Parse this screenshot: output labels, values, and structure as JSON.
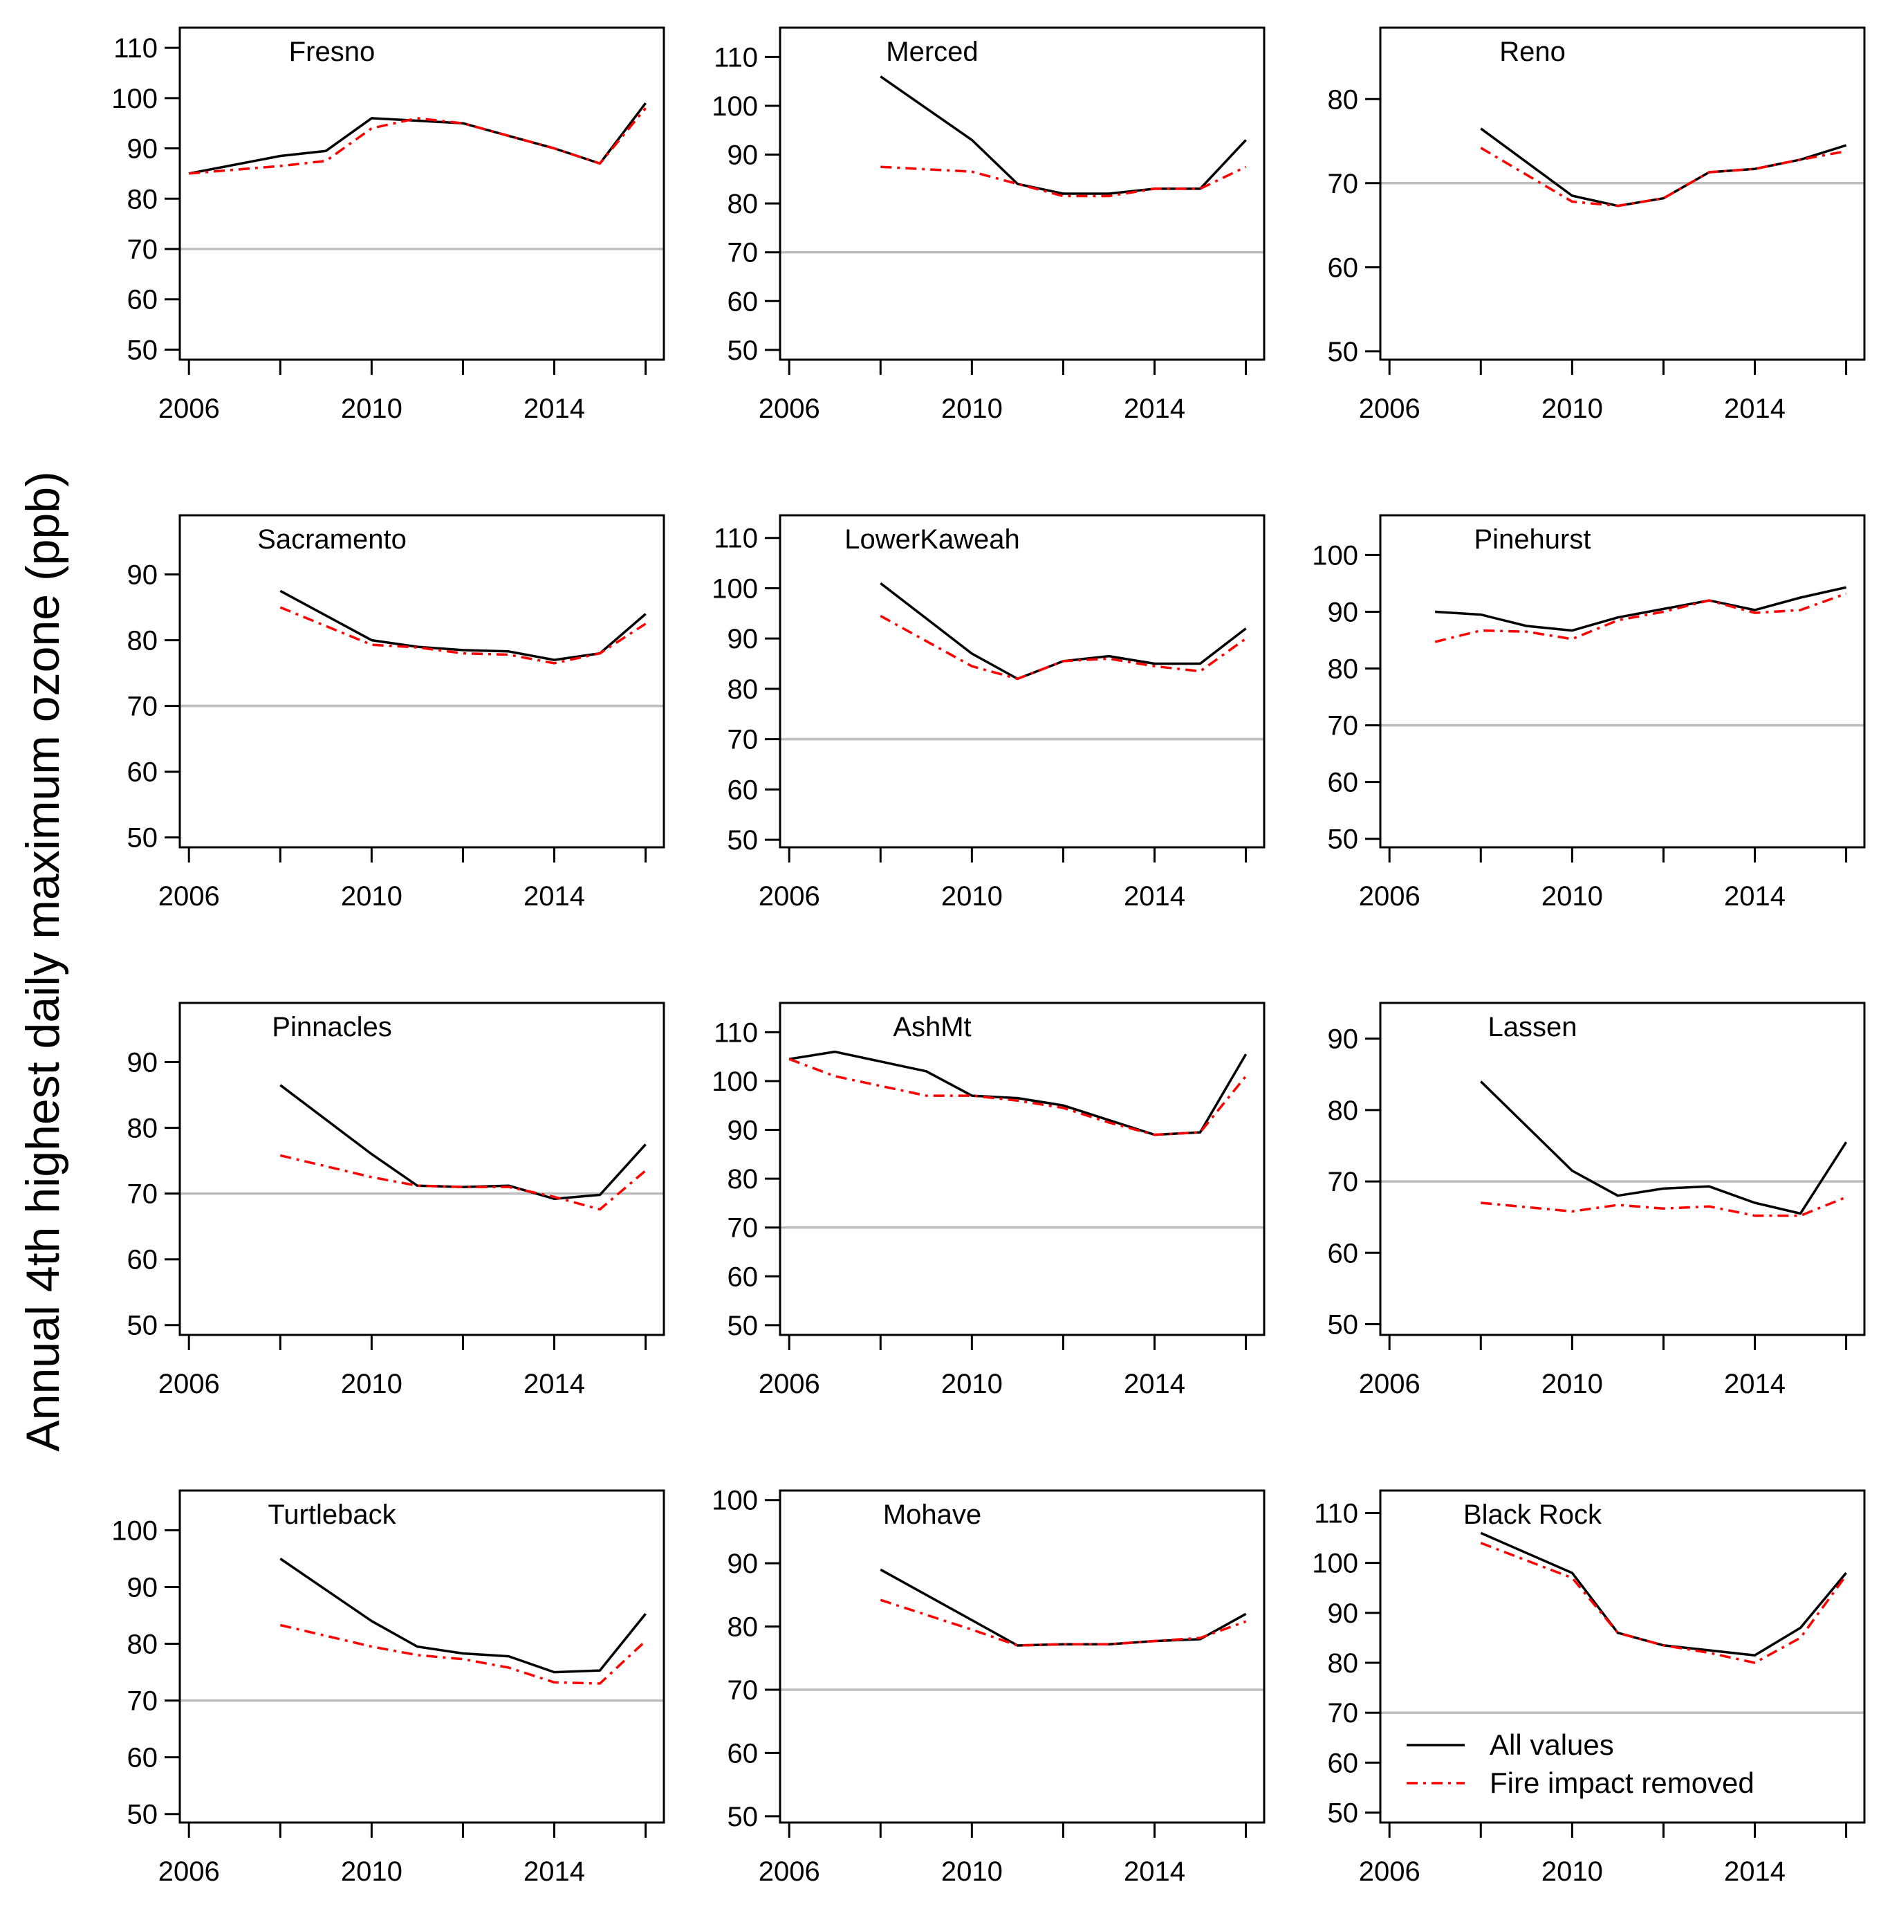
{
  "figure": {
    "ylabel": "Annual 4th highest daily maximum ozone (ppb)",
    "colors": {
      "all_values": "#000000",
      "fire_removed": "#ff0000",
      "reference_line": "#bdbdbd"
    }
  },
  "legend": {
    "items": [
      {
        "label": "All values",
        "style": "solid",
        "color": "#000000"
      },
      {
        "label": "Fire impact removed",
        "style": "dashdot",
        "color": "#ff0000"
      }
    ]
  },
  "chart_data": [
    {
      "type": "line",
      "title": "Fresno",
      "xlim": [
        2005.8,
        2016.4
      ],
      "xticks": [
        2006,
        2008,
        2010,
        2012,
        2014,
        2016
      ],
      "xticklabels": [
        "2006",
        "2010",
        "2014"
      ],
      "ylim": [
        48,
        114
      ],
      "yticks": [
        50,
        60,
        70,
        80,
        90,
        100,
        110
      ],
      "reference_line": 70,
      "series": [
        {
          "name": "All values",
          "x": [
            2006,
            2008,
            2009,
            2010,
            2011,
            2012,
            2013,
            2014,
            2015,
            2016
          ],
          "values": [
            85,
            88.5,
            89.5,
            96,
            95.5,
            95,
            92.5,
            90,
            87,
            99
          ]
        },
        {
          "name": "Fire impact removed",
          "x": [
            2006,
            2008,
            2009,
            2010,
            2011,
            2012,
            2013,
            2014,
            2015,
            2016
          ],
          "values": [
            85,
            86.5,
            87.5,
            94,
            96,
            95,
            92.5,
            90,
            87,
            98
          ]
        }
      ]
    },
    {
      "type": "line",
      "title": "Merced",
      "xlim": [
        2005.8,
        2016.4
      ],
      "xticks": [
        2006,
        2008,
        2010,
        2012,
        2014,
        2016
      ],
      "xticklabels": [
        "2006",
        "2010",
        "2014"
      ],
      "ylim": [
        48,
        116
      ],
      "yticks": [
        50,
        60,
        70,
        80,
        90,
        100,
        110
      ],
      "reference_line": 70,
      "series": [
        {
          "name": "All values",
          "x": [
            2008,
            2010,
            2011,
            2012,
            2013,
            2014,
            2015,
            2016
          ],
          "values": [
            106,
            93,
            84,
            82,
            82,
            83,
            83,
            93
          ]
        },
        {
          "name": "Fire impact removed",
          "x": [
            2008,
            2009,
            2010,
            2011,
            2012,
            2013,
            2014,
            2015,
            2016
          ],
          "values": [
            87.5,
            87,
            86.5,
            84,
            81.5,
            81.5,
            83,
            83,
            87.5
          ]
        }
      ]
    },
    {
      "type": "line",
      "title": "Reno",
      "xlim": [
        2005.8,
        2016.4
      ],
      "xticks": [
        2006,
        2008,
        2010,
        2012,
        2014,
        2016
      ],
      "xticklabels": [
        "2006",
        "2010",
        "2014"
      ],
      "ylim": [
        49,
        88.5
      ],
      "yticks": [
        50,
        60,
        70,
        80
      ],
      "reference_line": 70,
      "series": [
        {
          "name": "All values",
          "x": [
            2008,
            2010,
            2011,
            2012,
            2013,
            2014,
            2015,
            2016
          ],
          "values": [
            76.5,
            68.5,
            67.3,
            68.2,
            71.3,
            71.7,
            72.8,
            74.5
          ]
        },
        {
          "name": "Fire impact removed",
          "x": [
            2008,
            2010,
            2011,
            2012,
            2013,
            2014,
            2015,
            2016
          ],
          "values": [
            74.2,
            67.8,
            67.3,
            68.2,
            71.3,
            71.7,
            72.8,
            73.8
          ]
        }
      ]
    },
    {
      "type": "line",
      "title": "Sacramento",
      "xlim": [
        2005.8,
        2016.4
      ],
      "xticks": [
        2006,
        2008,
        2010,
        2012,
        2014,
        2016
      ],
      "xticklabels": [
        "2006",
        "2010",
        "2014"
      ],
      "ylim": [
        48.5,
        99
      ],
      "yticks": [
        50,
        60,
        70,
        80,
        90
      ],
      "reference_line": 70,
      "series": [
        {
          "name": "All values",
          "x": [
            2008,
            2010,
            2011,
            2012,
            2013,
            2014,
            2015,
            2016
          ],
          "values": [
            87.5,
            80,
            79,
            78.5,
            78.3,
            77,
            78,
            84
          ]
        },
        {
          "name": "Fire impact removed",
          "x": [
            2008,
            2010,
            2011,
            2012,
            2013,
            2014,
            2015,
            2016
          ],
          "values": [
            85,
            79.3,
            78.9,
            78,
            77.8,
            76.5,
            78,
            82.5
          ]
        }
      ]
    },
    {
      "type": "line",
      "title": "LowerKaweah",
      "xlim": [
        2005.8,
        2016.4
      ],
      "xticks": [
        2006,
        2008,
        2010,
        2012,
        2014,
        2016
      ],
      "xticklabels": [
        "2006",
        "2010",
        "2014"
      ],
      "ylim": [
        48.5,
        114.5
      ],
      "yticks": [
        50,
        60,
        70,
        80,
        90,
        100,
        110
      ],
      "reference_line": 70,
      "series": [
        {
          "name": "All values",
          "x": [
            2008,
            2010,
            2011,
            2012,
            2013,
            2014,
            2015,
            2016
          ],
          "values": [
            101,
            87,
            82,
            85.5,
            86.5,
            85,
            85,
            92
          ]
        },
        {
          "name": "Fire impact removed",
          "x": [
            2008,
            2010,
            2011,
            2012,
            2013,
            2014,
            2015,
            2016
          ],
          "values": [
            94.5,
            84.5,
            82,
            85.5,
            86,
            84.5,
            83.5,
            90
          ]
        }
      ]
    },
    {
      "type": "line",
      "title": "Pinehurst",
      "xlim": [
        2005.8,
        2016.4
      ],
      "xticks": [
        2006,
        2008,
        2010,
        2012,
        2014,
        2016
      ],
      "xticklabels": [
        "2006",
        "2010",
        "2014"
      ],
      "ylim": [
        48.5,
        107
      ],
      "yticks": [
        50,
        60,
        70,
        80,
        90,
        100
      ],
      "reference_line": 70,
      "series": [
        {
          "name": "All values",
          "x": [
            2007,
            2008,
            2009,
            2010,
            2011,
            2012,
            2013,
            2014,
            2015,
            2016
          ],
          "values": [
            90,
            89.5,
            87.5,
            86.7,
            89,
            90.5,
            92,
            90.3,
            92.5,
            94.3
          ]
        },
        {
          "name": "Fire impact removed",
          "x": [
            2007,
            2008,
            2009,
            2010,
            2011,
            2012,
            2013,
            2014,
            2015,
            2016
          ],
          "values": [
            84.7,
            86.7,
            86.5,
            85.2,
            88.5,
            90,
            92,
            89.8,
            90.3,
            93.2
          ]
        }
      ]
    },
    {
      "type": "line",
      "title": "Pinnacles",
      "xlim": [
        2005.8,
        2016.4
      ],
      "xticks": [
        2006,
        2008,
        2010,
        2012,
        2014,
        2016
      ],
      "xticklabels": [
        "2006",
        "2010",
        "2014"
      ],
      "ylim": [
        48.5,
        99
      ],
      "yticks": [
        50,
        60,
        70,
        80,
        90
      ],
      "reference_line": 70,
      "series": [
        {
          "name": "All values",
          "x": [
            2008,
            2010,
            2011,
            2012,
            2013,
            2014,
            2015,
            2016
          ],
          "values": [
            86.5,
            76,
            71.2,
            71,
            71.2,
            69.2,
            69.8,
            77.5
          ]
        },
        {
          "name": "Fire impact removed",
          "x": [
            2008,
            2010,
            2011,
            2012,
            2013,
            2014,
            2015,
            2016
          ],
          "values": [
            75.8,
            72.5,
            71.2,
            71,
            71,
            69.5,
            67.6,
            73.5
          ]
        }
      ]
    },
    {
      "type": "line",
      "title": "AshMt",
      "xlim": [
        2005.8,
        2016.4
      ],
      "xticks": [
        2006,
        2008,
        2010,
        2012,
        2014,
        2016
      ],
      "xticklabels": [
        "2006",
        "2010",
        "2014"
      ],
      "ylim": [
        48,
        116
      ],
      "yticks": [
        50,
        60,
        70,
        80,
        90,
        100,
        110
      ],
      "reference_line": 70,
      "series": [
        {
          "name": "All values",
          "x": [
            2006,
            2007,
            2008,
            2009,
            2010,
            2011,
            2012,
            2013,
            2014,
            2015,
            2016
          ],
          "values": [
            104.5,
            106,
            104,
            102,
            97,
            96.5,
            95,
            92,
            89,
            89.5,
            105.5
          ]
        },
        {
          "name": "Fire impact removed",
          "x": [
            2006,
            2007,
            2008,
            2009,
            2010,
            2011,
            2012,
            2013,
            2014,
            2015,
            2016
          ],
          "values": [
            104.5,
            101,
            99,
            97,
            97,
            96,
            94.5,
            91.5,
            89,
            89.5,
            101
          ]
        }
      ]
    },
    {
      "type": "line",
      "title": "Lassen",
      "xlim": [
        2005.8,
        2016.4
      ],
      "xticks": [
        2006,
        2008,
        2010,
        2012,
        2014,
        2016
      ],
      "xticklabels": [
        "2006",
        "2010",
        "2014"
      ],
      "ylim": [
        48.5,
        95
      ],
      "yticks": [
        50,
        60,
        70,
        80,
        90
      ],
      "reference_line": 70,
      "series": [
        {
          "name": "All values",
          "x": [
            2008,
            2010,
            2011,
            2012,
            2013,
            2014,
            2015,
            2016
          ],
          "values": [
            84,
            71.5,
            68,
            69,
            69.3,
            67,
            65.5,
            75.5
          ]
        },
        {
          "name": "Fire impact removed",
          "x": [
            2008,
            2010,
            2011,
            2012,
            2013,
            2014,
            2015,
            2016
          ],
          "values": [
            67,
            65.8,
            66.7,
            66.2,
            66.5,
            65.2,
            65.2,
            67.8
          ]
        }
      ]
    },
    {
      "type": "line",
      "title": "Turtleback",
      "xlim": [
        2005.8,
        2016.4
      ],
      "xticks": [
        2006,
        2008,
        2010,
        2012,
        2014,
        2016
      ],
      "xticklabels": [
        "2006",
        "2010",
        "2014"
      ],
      "ylim": [
        48.5,
        107
      ],
      "yticks": [
        50,
        60,
        70,
        80,
        90,
        100
      ],
      "reference_line": 70,
      "series": [
        {
          "name": "All values",
          "x": [
            2008,
            2010,
            2011,
            2012,
            2013,
            2014,
            2015,
            2016
          ],
          "values": [
            95,
            84,
            79.5,
            78.3,
            77.8,
            75,
            75.3,
            85.3
          ]
        },
        {
          "name": "Fire impact removed",
          "x": [
            2008,
            2010,
            2011,
            2012,
            2013,
            2014,
            2015,
            2016
          ],
          "values": [
            83.3,
            79.5,
            78,
            77.3,
            75.8,
            73.2,
            73,
            80.5
          ]
        }
      ]
    },
    {
      "type": "line",
      "title": "Mohave",
      "xlim": [
        2005.8,
        2016.4
      ],
      "xticks": [
        2006,
        2008,
        2010,
        2012,
        2014,
        2016
      ],
      "xticklabels": [
        "2006",
        "2010",
        "2014"
      ],
      "ylim": [
        49,
        101.5
      ],
      "yticks": [
        50,
        60,
        70,
        80,
        90,
        100
      ],
      "reference_line": 70,
      "series": [
        {
          "name": "All values",
          "x": [
            2008,
            2010,
            2011,
            2012,
            2013,
            2014,
            2015,
            2016
          ],
          "values": [
            89,
            81,
            77,
            77.2,
            77.2,
            77.7,
            78,
            82
          ]
        },
        {
          "name": "Fire impact removed",
          "x": [
            2008,
            2010,
            2011,
            2012,
            2013,
            2014,
            2015,
            2016
          ],
          "values": [
            84.2,
            79.5,
            77,
            77.2,
            77.2,
            77.7,
            78.2,
            80.8
          ]
        }
      ]
    },
    {
      "type": "line",
      "title": "Black Rock",
      "xlim": [
        2005.8,
        2016.4
      ],
      "xticks": [
        2006,
        2008,
        2010,
        2012,
        2014,
        2016
      ],
      "xticklabels": [
        "2006",
        "2010",
        "2014"
      ],
      "ylim": [
        48,
        114.5
      ],
      "yticks": [
        50,
        60,
        70,
        80,
        90,
        100,
        110
      ],
      "reference_line": 70,
      "legend": "bottom-right",
      "series": [
        {
          "name": "All values",
          "x": [
            2008,
            2010,
            2011,
            2012,
            2013,
            2014,
            2015,
            2016
          ],
          "values": [
            106,
            98,
            86,
            83.5,
            82.5,
            81.5,
            87,
            98
          ]
        },
        {
          "name": "Fire impact removed",
          "x": [
            2008,
            2010,
            2011,
            2012,
            2013,
            2014,
            2015,
            2016
          ],
          "values": [
            104,
            97,
            86,
            83.5,
            82,
            80,
            85,
            97.5
          ]
        }
      ]
    }
  ]
}
